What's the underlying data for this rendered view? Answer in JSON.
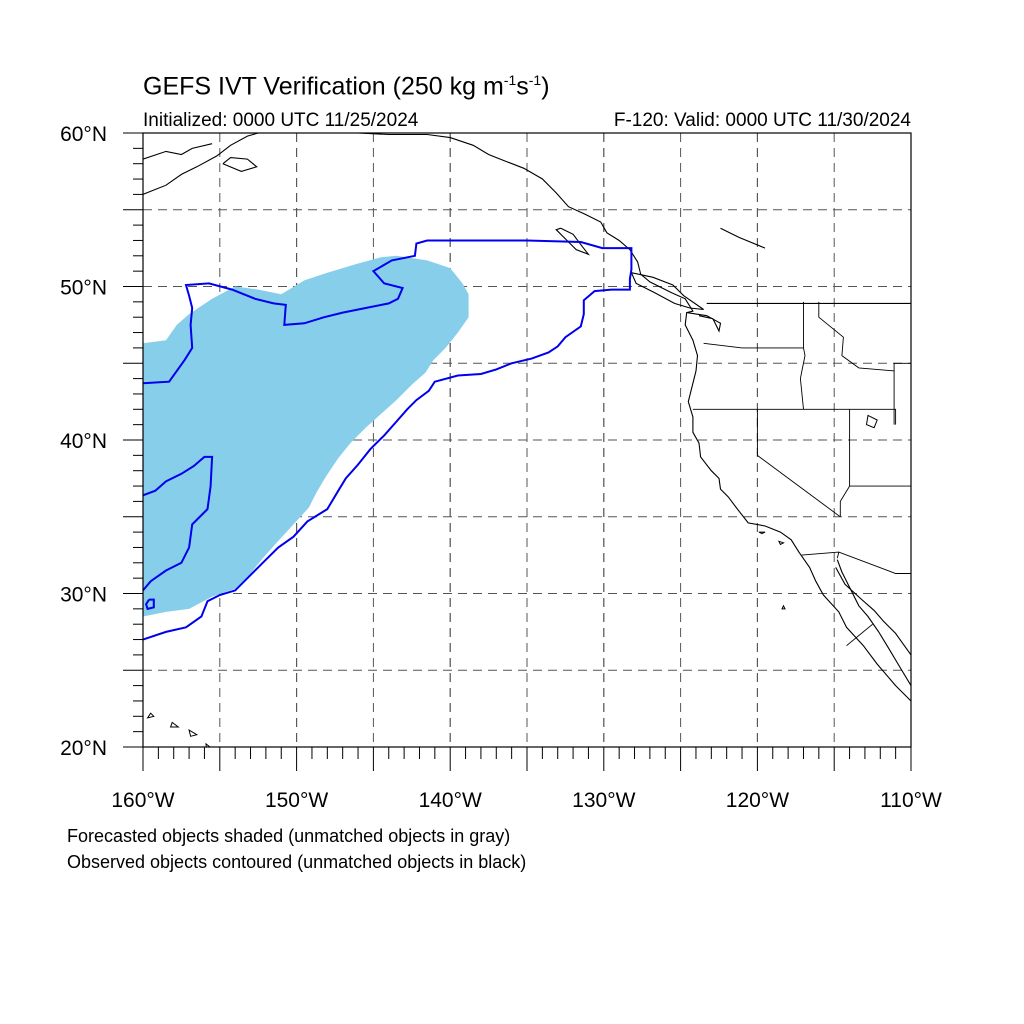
{
  "title": {
    "main": "GEFS IVT Verification (250 kg m",
    "sup1": "-1",
    "mid": "s",
    "sup2": "-1",
    "end": ")"
  },
  "subtitle": {
    "initialized": "Initialized: 0000 UTC 11/25/2024",
    "valid": "F-120: Valid: 0000 UTC 11/30/2024"
  },
  "axes": {
    "lon_ticks": [
      {
        "value": -160,
        "label": "160°W"
      },
      {
        "value": -150,
        "label": "150°W"
      },
      {
        "value": -140,
        "label": "140°W"
      },
      {
        "value": -130,
        "label": "130°W"
      },
      {
        "value": -120,
        "label": "120°W"
      },
      {
        "value": -110,
        "label": "110°W"
      }
    ],
    "lat_ticks": [
      {
        "value": 20,
        "label": "20°N"
      },
      {
        "value": 30,
        "label": "30°N"
      },
      {
        "value": 40,
        "label": "40°N"
      },
      {
        "value": 50,
        "label": "50°N"
      },
      {
        "value": 60,
        "label": "60°N"
      }
    ],
    "lon_range": [
      -160,
      -110
    ],
    "lat_range": [
      20,
      60
    ],
    "grid_lon": [
      -155,
      -150,
      -145,
      -140,
      -135,
      -130,
      -125,
      -120,
      -115
    ],
    "grid_lat": [
      25,
      30,
      35,
      40,
      45,
      50,
      55
    ]
  },
  "colors": {
    "forecast_fill": "#87ceeb",
    "observed_contour": "#0000ee",
    "coastline": "#000000",
    "grid": "#555555"
  },
  "objects": {
    "forecast_shaded": [
      [
        -160,
        46.3
      ],
      [
        -158.5,
        46.5
      ],
      [
        -157.8,
        47.5
      ],
      [
        -157,
        48.2
      ],
      [
        -155.5,
        49.2
      ],
      [
        -154,
        50
      ],
      [
        -152.5,
        49.8
      ],
      [
        -151,
        49.5
      ],
      [
        -149.5,
        50.4
      ],
      [
        -148,
        50.9
      ],
      [
        -146,
        51.5
      ],
      [
        -144.5,
        51.9
      ],
      [
        -143.5,
        52.0
      ],
      [
        -141.5,
        51.7
      ],
      [
        -140.0,
        51.2
      ],
      [
        -139.2,
        50.2
      ],
      [
        -138.8,
        49.5
      ],
      [
        -138.8,
        48.0
      ],
      [
        -139.5,
        47.0
      ],
      [
        -140.3,
        46.0
      ],
      [
        -141.1,
        45.2
      ],
      [
        -141.6,
        44.4
      ],
      [
        -142.5,
        43.6
      ],
      [
        -143.5,
        42.6
      ],
      [
        -144.5,
        41.7
      ],
      [
        -145.5,
        40.8
      ],
      [
        -146.5,
        39.8
      ],
      [
        -147.3,
        38.8
      ],
      [
        -148.1,
        37.6
      ],
      [
        -148.7,
        36.6
      ],
      [
        -149.2,
        35.6
      ],
      [
        -150.2,
        34.5
      ],
      [
        -151.3,
        33.3
      ],
      [
        -152.2,
        32.3
      ],
      [
        -153.0,
        31.3
      ],
      [
        -154.0,
        30.3
      ],
      [
        -155.5,
        29.8
      ],
      [
        -157.0,
        29.0
      ],
      [
        -158.5,
        28.8
      ],
      [
        -160,
        28.5
      ]
    ],
    "observed_contours": [
      [
        [
          -160,
          43.7
        ],
        [
          -158.3,
          43.8
        ],
        [
          -157.8,
          44.5
        ],
        [
          -157.3,
          45.2
        ],
        [
          -156.8,
          46.0
        ],
        [
          -156.9,
          47.5
        ],
        [
          -156.8,
          48.6
        ],
        [
          -157.0,
          49.4
        ],
        [
          -157.2,
          50.1
        ],
        [
          -155.7,
          50.2
        ],
        [
          -154.2,
          49.8
        ],
        [
          -152.7,
          49.2
        ],
        [
          -151.5,
          48.9
        ],
        [
          -150.7,
          48.8
        ],
        [
          -150.8,
          47.5
        ],
        [
          -149.5,
          47.6
        ],
        [
          -148.2,
          48.0
        ],
        [
          -147.0,
          48.3
        ],
        [
          -145.5,
          48.6
        ],
        [
          -144.0,
          48.9
        ],
        [
          -143.4,
          49.2
        ],
        [
          -143.1,
          49.9
        ],
        [
          -144.3,
          50.2
        ],
        [
          -145.0,
          51.0
        ],
        [
          -143.8,
          51.7
        ],
        [
          -142.3,
          52.0
        ],
        [
          -142.2,
          52.8
        ],
        [
          -141.5,
          53.0
        ],
        [
          -135.0,
          53.0
        ],
        [
          -131.5,
          52.9
        ],
        [
          -130.1,
          52.5
        ],
        [
          -128.2,
          52.5
        ],
        [
          -128.2,
          51.1
        ],
        [
          -128.3,
          50.5
        ],
        [
          -128.3,
          49.8
        ],
        [
          -129.5,
          49.8
        ],
        [
          -130.6,
          49.7
        ],
        [
          -131.3,
          49.1
        ],
        [
          -131.3,
          48.2
        ],
        [
          -131.5,
          47.4
        ],
        [
          -132.5,
          46.7
        ],
        [
          -133.0,
          46.1
        ],
        [
          -133.6,
          45.7
        ],
        [
          -134.7,
          45.3
        ],
        [
          -136.0,
          45.0
        ],
        [
          -137.0,
          44.6
        ],
        [
          -138.0,
          44.3
        ],
        [
          -139.5,
          44.2
        ],
        [
          -141.0,
          43.8
        ],
        [
          -141.4,
          43.2
        ],
        [
          -142.2,
          42.6
        ],
        [
          -142.8,
          42.0
        ],
        [
          -143.5,
          41.2
        ],
        [
          -144.3,
          40.3
        ],
        [
          -145.2,
          39.4
        ],
        [
          -146.0,
          38.4
        ],
        [
          -146.8,
          37.5
        ],
        [
          -147.4,
          36.5
        ],
        [
          -148.0,
          35.5
        ],
        [
          -149.3,
          34.7
        ],
        [
          -150.2,
          33.7
        ],
        [
          -151.2,
          33.0
        ],
        [
          -152.0,
          32.2
        ],
        [
          -153.0,
          31.2
        ],
        [
          -154.0,
          30.2
        ],
        [
          -155.0,
          29.9
        ],
        [
          -155.8,
          29.5
        ],
        [
          -156.2,
          28.5
        ],
        [
          -157.2,
          27.8
        ],
        [
          -158.5,
          27.5
        ],
        [
          -160,
          27.0
        ]
      ],
      [
        [
          -160,
          36.4
        ],
        [
          -159.2,
          36.7
        ],
        [
          -158.5,
          37.3
        ],
        [
          -157.5,
          37.8
        ],
        [
          -156.7,
          38.3
        ],
        [
          -156.0,
          38.9
        ],
        [
          -155.5,
          38.9
        ],
        [
          -155.6,
          37.0
        ],
        [
          -155.8,
          35.5
        ],
        [
          -156.8,
          34.5
        ],
        [
          -157.0,
          33.0
        ],
        [
          -157.5,
          32.0
        ],
        [
          -158.5,
          31.5
        ],
        [
          -159.5,
          30.8
        ],
        [
          -160,
          30.2
        ]
      ],
      [
        [
          -159.6,
          29.6
        ],
        [
          -159.3,
          29.6
        ],
        [
          -159.3,
          29.1
        ],
        [
          -159.7,
          29.0
        ],
        [
          -159.8,
          29.3
        ],
        [
          -159.6,
          29.6
        ]
      ]
    ],
    "coastlines": [
      [
        [
          -160,
          58.3
        ],
        [
          -158.5,
          58.8
        ],
        [
          -157.5,
          58.6
        ],
        [
          -156.8,
          59.0
        ],
        [
          -155.5,
          59.3
        ]
      ],
      [
        [
          -160,
          56.0
        ],
        [
          -158.5,
          56.6
        ],
        [
          -157.5,
          57.3
        ],
        [
          -156.5,
          57.8
        ],
        [
          -155.2,
          58.5
        ],
        [
          -154.3,
          59.2
        ],
        [
          -153.2,
          59.8
        ],
        [
          -152.5,
          60.0
        ]
      ],
      [
        [
          -154.8,
          58.0
        ],
        [
          -153.6,
          57.5
        ],
        [
          -152.6,
          57.8
        ],
        [
          -153.2,
          58.3
        ],
        [
          -154.3,
          58.4
        ],
        [
          -154.8,
          58.0
        ]
      ],
      [
        [
          -146,
          60
        ],
        [
          -144,
          59.9
        ],
        [
          -141.5,
          59.9
        ],
        [
          -140,
          59.7
        ],
        [
          -138.5,
          59.2
        ],
        [
          -137.5,
          58.6
        ],
        [
          -136.5,
          58.2
        ],
        [
          -135.2,
          57.7
        ],
        [
          -134.0,
          57.0
        ],
        [
          -133.1,
          56.1
        ],
        [
          -132.3,
          55.2
        ],
        [
          -131.2,
          54.7
        ],
        [
          -130.2,
          54.2
        ],
        [
          -129.8,
          53.5
        ],
        [
          -129.0,
          53.0
        ],
        [
          -128.3,
          52.4
        ],
        [
          -127.8,
          51.6
        ],
        [
          -127.6,
          50.8
        ],
        [
          -127.0,
          50.3
        ],
        [
          -125.6,
          49.6
        ],
        [
          -124.7,
          49.2
        ],
        [
          -124.2,
          48.4
        ],
        [
          -124.6,
          48.3
        ],
        [
          -124.7,
          47.5
        ],
        [
          -124.2,
          46.5
        ],
        [
          -123.9,
          45.5
        ],
        [
          -124.0,
          44.5
        ],
        [
          -124.3,
          43.3
        ],
        [
          -124.5,
          42.5
        ],
        [
          -124.2,
          41.5
        ],
        [
          -124.2,
          40.5
        ],
        [
          -123.8,
          39.8
        ],
        [
          -123.7,
          38.9
        ],
        [
          -123.0,
          38.0
        ],
        [
          -122.5,
          37.5
        ],
        [
          -122.4,
          36.8
        ],
        [
          -121.9,
          36.3
        ],
        [
          -121.3,
          35.5
        ],
        [
          -120.6,
          34.6
        ],
        [
          -119.5,
          34.4
        ],
        [
          -118.5,
          34.0
        ],
        [
          -117.8,
          33.5
        ],
        [
          -117.3,
          32.7
        ],
        [
          -116.6,
          31.7
        ],
        [
          -116.2,
          30.8
        ],
        [
          -115.7,
          29.9
        ],
        [
          -114.7,
          28.8
        ],
        [
          -114.2,
          27.8
        ],
        [
          -113.1,
          26.6
        ],
        [
          -112.2,
          25.4
        ],
        [
          -111.0,
          24.0
        ],
        [
          -110.0,
          23.0
        ]
      ],
      [
        [
          -114.8,
          32.2
        ],
        [
          -114.5,
          31.4
        ],
        [
          -114.0,
          30.4
        ],
        [
          -113.4,
          29.2
        ],
        [
          -112.8,
          28.5
        ],
        [
          -112.1,
          27.5
        ],
        [
          -111.5,
          26.5
        ],
        [
          -110.9,
          25.5
        ],
        [
          -110.0,
          24.0
        ]
      ],
      [
        [
          -114.9,
          31.7
        ],
        [
          -114.3,
          30.6
        ],
        [
          -113.2,
          29.6
        ],
        [
          -112.4,
          28.9
        ],
        [
          -111.8,
          28.2
        ],
        [
          -111.0,
          27.4
        ],
        [
          -110.5,
          26.7
        ],
        [
          -110.0,
          26.0
        ]
      ],
      [
        [
          -132.8,
          53.8
        ],
        [
          -132.0,
          53.4
        ],
        [
          -131.4,
          52.6
        ],
        [
          -131.0,
          52.1
        ],
        [
          -131.8,
          52.4
        ],
        [
          -132.5,
          53.1
        ],
        [
          -133.1,
          53.7
        ],
        [
          -132.8,
          53.8
        ]
      ],
      [
        [
          -128.2,
          50.9
        ],
        [
          -126.8,
          50.6
        ],
        [
          -125.5,
          50.1
        ],
        [
          -124.8,
          49.4
        ],
        [
          -123.5,
          48.5
        ],
        [
          -124.4,
          48.6
        ],
        [
          -125.4,
          48.9
        ],
        [
          -126.7,
          49.6
        ],
        [
          -127.9,
          50.2
        ],
        [
          -128.2,
          50.9
        ]
      ],
      [
        [
          -124.6,
          48.3
        ],
        [
          -123.3,
          48.1
        ],
        [
          -122.4,
          47.6
        ],
        [
          -122.5,
          47.1
        ],
        [
          -122.9,
          47.9
        ],
        [
          -123.8,
          48.1
        ]
      ],
      [
        [
          -110,
          48.9
        ],
        [
          -123.3,
          48.9
        ]
      ],
      [
        [
          -110,
          49.0
        ],
        [
          -110,
          49.0
        ]
      ],
      [
        [
          -122.4,
          53.8
        ],
        [
          -121.2,
          53.2
        ],
        [
          -119.5,
          52.5
        ]
      ]
    ],
    "borders": [
      [
        [
          -124.2,
          42.0
        ],
        [
          -111.0,
          42.0
        ],
        [
          -111.0,
          41.0
        ]
      ],
      [
        [
          -120.0,
          42.0
        ],
        [
          -120.0,
          39.0
        ],
        [
          -114.6,
          35.0
        ]
      ],
      [
        [
          -117.0,
          49.0
        ],
        [
          -117.0,
          46.0
        ],
        [
          -116.9,
          45.5
        ],
        [
          -117.1,
          44.5
        ],
        [
          -117.2,
          44.0
        ],
        [
          -117.0,
          42.0
        ]
      ],
      [
        [
          -123.5,
          46.3
        ],
        [
          -121.0,
          46.0
        ],
        [
          -119.0,
          46.0
        ],
        [
          -117.0,
          46.0
        ]
      ],
      [
        [
          -116.0,
          49.0
        ],
        [
          -116.0,
          48.0
        ],
        [
          -114.4,
          46.7
        ],
        [
          -114.5,
          45.5
        ],
        [
          -113.4,
          44.7
        ],
        [
          -111.1,
          44.5
        ]
      ],
      [
        [
          -114.0,
          42.0
        ],
        [
          -114.0,
          37.0
        ],
        [
          -114.6,
          36.0
        ],
        [
          -114.6,
          35.0
        ]
      ],
      [
        [
          -110.0,
          45.0
        ],
        [
          -111.1,
          45.0
        ],
        [
          -111.1,
          41.0
        ]
      ],
      [
        [
          -114.0,
          37.0
        ],
        [
          -110.0,
          37.0
        ]
      ],
      [
        [
          -117.1,
          32.5
        ],
        [
          -114.7,
          32.7
        ],
        [
          -111.0,
          31.3
        ],
        [
          -110.0,
          31.3
        ]
      ],
      [
        [
          -114.7,
          32.7
        ],
        [
          -114.8,
          32.3
        ]
      ],
      [
        [
          -114.2,
          26.6
        ],
        [
          -112.5,
          28.0
        ]
      ]
    ],
    "lakes": [
      [
        [
          -112.8,
          41.6
        ],
        [
          -112.2,
          41.3
        ],
        [
          -112.4,
          40.8
        ],
        [
          -112.9,
          41.0
        ],
        [
          -112.8,
          41.6
        ]
      ],
      [
        [
          -159.5,
          22.2
        ],
        [
          -159.3,
          22.0
        ],
        [
          -159.7,
          21.9
        ],
        [
          -159.5,
          22.2
        ]
      ],
      [
        [
          -158.1,
          21.6
        ],
        [
          -157.7,
          21.3
        ],
        [
          -158.2,
          21.3
        ],
        [
          -158.1,
          21.6
        ]
      ],
      [
        [
          -157.0,
          21.1
        ],
        [
          -156.5,
          20.8
        ],
        [
          -156.9,
          20.7
        ],
        [
          -157.0,
          21.1
        ]
      ],
      [
        [
          -155.9,
          20.2
        ],
        [
          -155.0,
          19.5
        ],
        [
          -155.8,
          19.2
        ],
        [
          -155.9,
          20.2
        ]
      ],
      [
        [
          -118.6,
          33.4
        ],
        [
          -118.3,
          33.3
        ],
        [
          -118.5,
          33.2
        ],
        [
          -118.6,
          33.4
        ]
      ],
      [
        [
          -119.9,
          34.0
        ],
        [
          -119.5,
          34.0
        ],
        [
          -119.7,
          33.9
        ],
        [
          -119.9,
          34.0
        ]
      ],
      [
        [
          -118.3,
          29.2
        ],
        [
          -118.2,
          29.0
        ],
        [
          -118.4,
          29.0
        ],
        [
          -118.3,
          29.2
        ]
      ]
    ]
  }
}
